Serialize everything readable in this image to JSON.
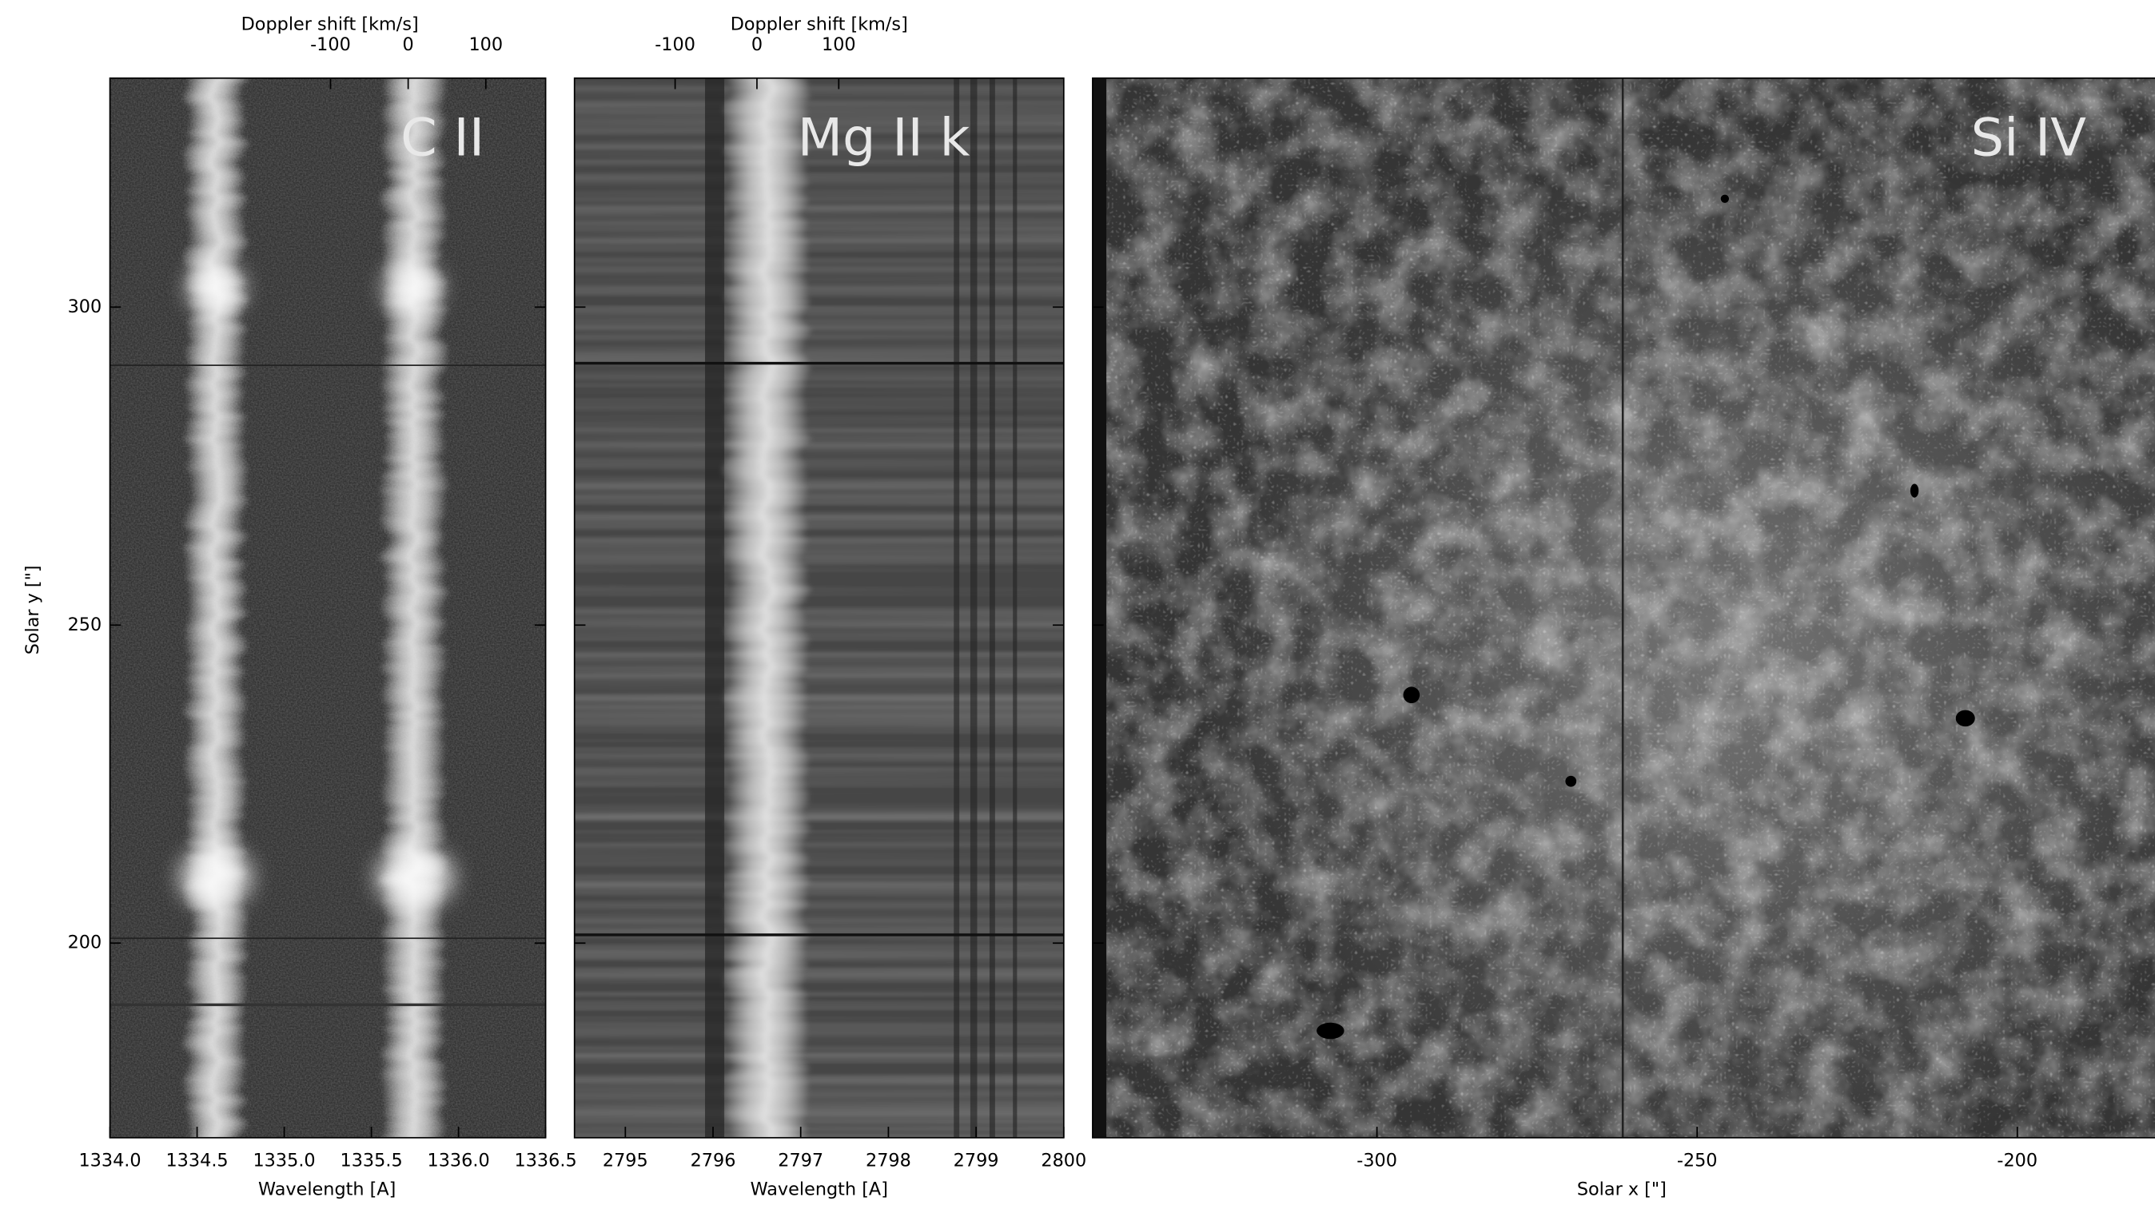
{
  "chart_data": [
    {
      "type": "spectrum",
      "label": "C II",
      "x2_title": "Doppler shift [km/s]",
      "xlabel": "Wavelength [A]",
      "ylabel": "Solar y [\"]",
      "xlim": [
        1334.0,
        1336.5
      ],
      "xticks": [
        {
          "value": 1334.0,
          "label": "1334.0"
        },
        1334.5,
        {
          "value": 1335.0,
          "label": "1335.0"
        },
        1335.5,
        {
          "value": 1336.0,
          "label": "1336.0"
        },
        1336.5
      ],
      "x2lim": [
        -384,
        177
      ],
      "x2ticks": [
        -100,
        0,
        100
      ],
      "ylim": [
        169.4,
        336
      ],
      "yticks": [
        200,
        250,
        300
      ]
    },
    {
      "type": "spectrum",
      "label": "Mg II k",
      "x2_title": "Doppler shift [km/s]",
      "xlabel": "Wavelength [A]",
      "xlim": [
        2794.42,
        2800
      ],
      "xticks": [
        2795,
        2796,
        2797,
        2798,
        2799,
        2800
      ],
      "x2lim": [
        -223,
        375
      ],
      "x2ticks": [
        -100,
        0,
        100
      ]
    },
    {
      "type": "image",
      "label": "Si IV",
      "xlabel": "Solar x [\"]",
      "xlim": [
        -344.4,
        -178.5
      ],
      "xticks": [
        -300,
        -250,
        -200
      ]
    }
  ]
}
